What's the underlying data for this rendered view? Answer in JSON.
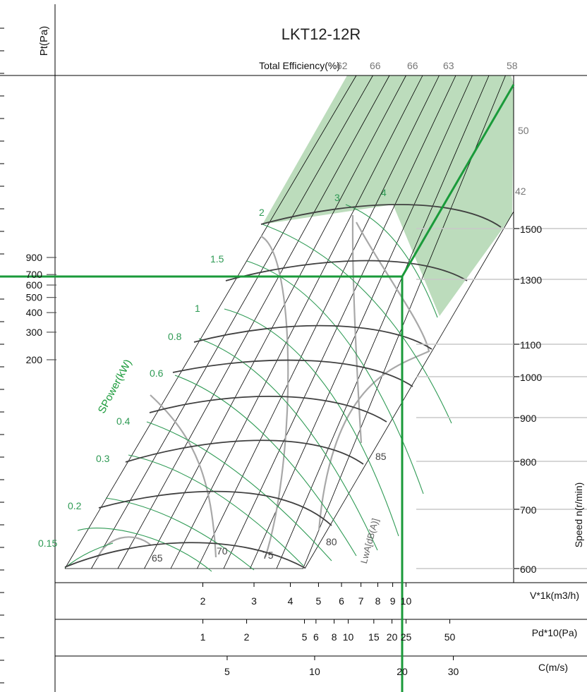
{
  "chart_data": {
    "type": "fan-performance-chart",
    "title": "LKT12-12R",
    "y_axis": {
      "label": "Pt(Pa)",
      "scale": "log",
      "ticks": [
        200,
        300,
        400,
        500,
        600,
        700,
        900
      ]
    },
    "efficiency": {
      "label": "Total Efficiency(%)",
      "values": [
        62,
        66,
        66,
        63,
        58
      ]
    },
    "power_curves": {
      "label": "SPower(kW)",
      "values": [
        0.15,
        0.2,
        0.3,
        0.4,
        0.6,
        0.8,
        1,
        1.5,
        2,
        3,
        4
      ]
    },
    "speed": {
      "label": "Speed n(r/min)",
      "curves": [
        600,
        700,
        800,
        900,
        1000,
        1100,
        1300,
        1500
      ],
      "extra_labels": [
        42,
        50
      ]
    },
    "noise": {
      "label": "LwA[dB(A)]",
      "values": [
        65,
        70,
        75,
        80,
        85
      ]
    },
    "bottom_axes": [
      {
        "label": "V*1k(m3/h)",
        "ticks": [
          "2",
          "3",
          "4",
          "5",
          "6",
          "7",
          "8",
          "9",
          "10"
        ]
      },
      {
        "label": "Pd*10(Pa)",
        "ticks": [
          "1",
          "2",
          "5",
          "6",
          "8",
          "10",
          "15",
          "20",
          "25",
          "50"
        ]
      },
      {
        "label": "C(m/s)",
        "ticks": [
          "5",
          "10",
          "20",
          "30"
        ]
      }
    ],
    "operating_point": {
      "V": 9.7,
      "Pt": 680
    },
    "colors": {
      "accent": "#1a9a3a",
      "shade": "#bcdcbc",
      "speed_curve": "#404040",
      "noise_curve": "#a8a8a8",
      "power_curve": "#2e9a54",
      "grid": "#000000",
      "leader": "#c8c8c8"
    }
  }
}
